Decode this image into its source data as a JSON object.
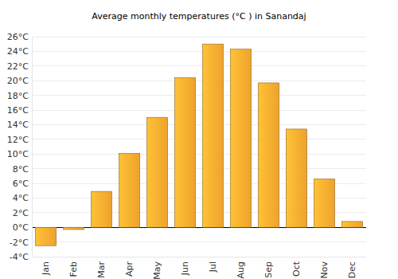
{
  "chart_data": {
    "type": "bar",
    "title": "Average monthly temperatures (°C ) in Sanandaj",
    "categories": [
      "Jan",
      "Feb",
      "Mar",
      "Apr",
      "May",
      "Jun",
      "Jul",
      "Aug",
      "Sep",
      "Oct",
      "Nov",
      "Dec"
    ],
    "values": [
      -2.5,
      -0.3,
      4.9,
      10.1,
      15.0,
      20.4,
      25.0,
      24.3,
      19.7,
      13.4,
      6.6,
      0.8
    ],
    "color": "#fbab30",
    "ylim": [
      -4,
      26
    ],
    "yticks": [
      {
        "value": -4,
        "label": "-4°C"
      },
      {
        "value": -2,
        "label": "-2°C"
      },
      {
        "value": 0,
        "label": "0°C"
      },
      {
        "value": 2,
        "label": "2°C"
      },
      {
        "value": 4,
        "label": "4°C"
      },
      {
        "value": 6,
        "label": "6°C"
      },
      {
        "value": 8,
        "label": "8°C"
      },
      {
        "value": 10,
        "label": "10°C"
      },
      {
        "value": 12,
        "label": "12°C"
      },
      {
        "value": 14,
        "label": "14°C"
      },
      {
        "value": 16,
        "label": "16°C"
      },
      {
        "value": 18,
        "label": "18°C"
      },
      {
        "value": 20,
        "label": "20°C"
      },
      {
        "value": 22,
        "label": "22°C"
      },
      {
        "value": 24,
        "label": "24°C"
      },
      {
        "value": 26,
        "label": "26°C"
      }
    ],
    "grid": true
  }
}
